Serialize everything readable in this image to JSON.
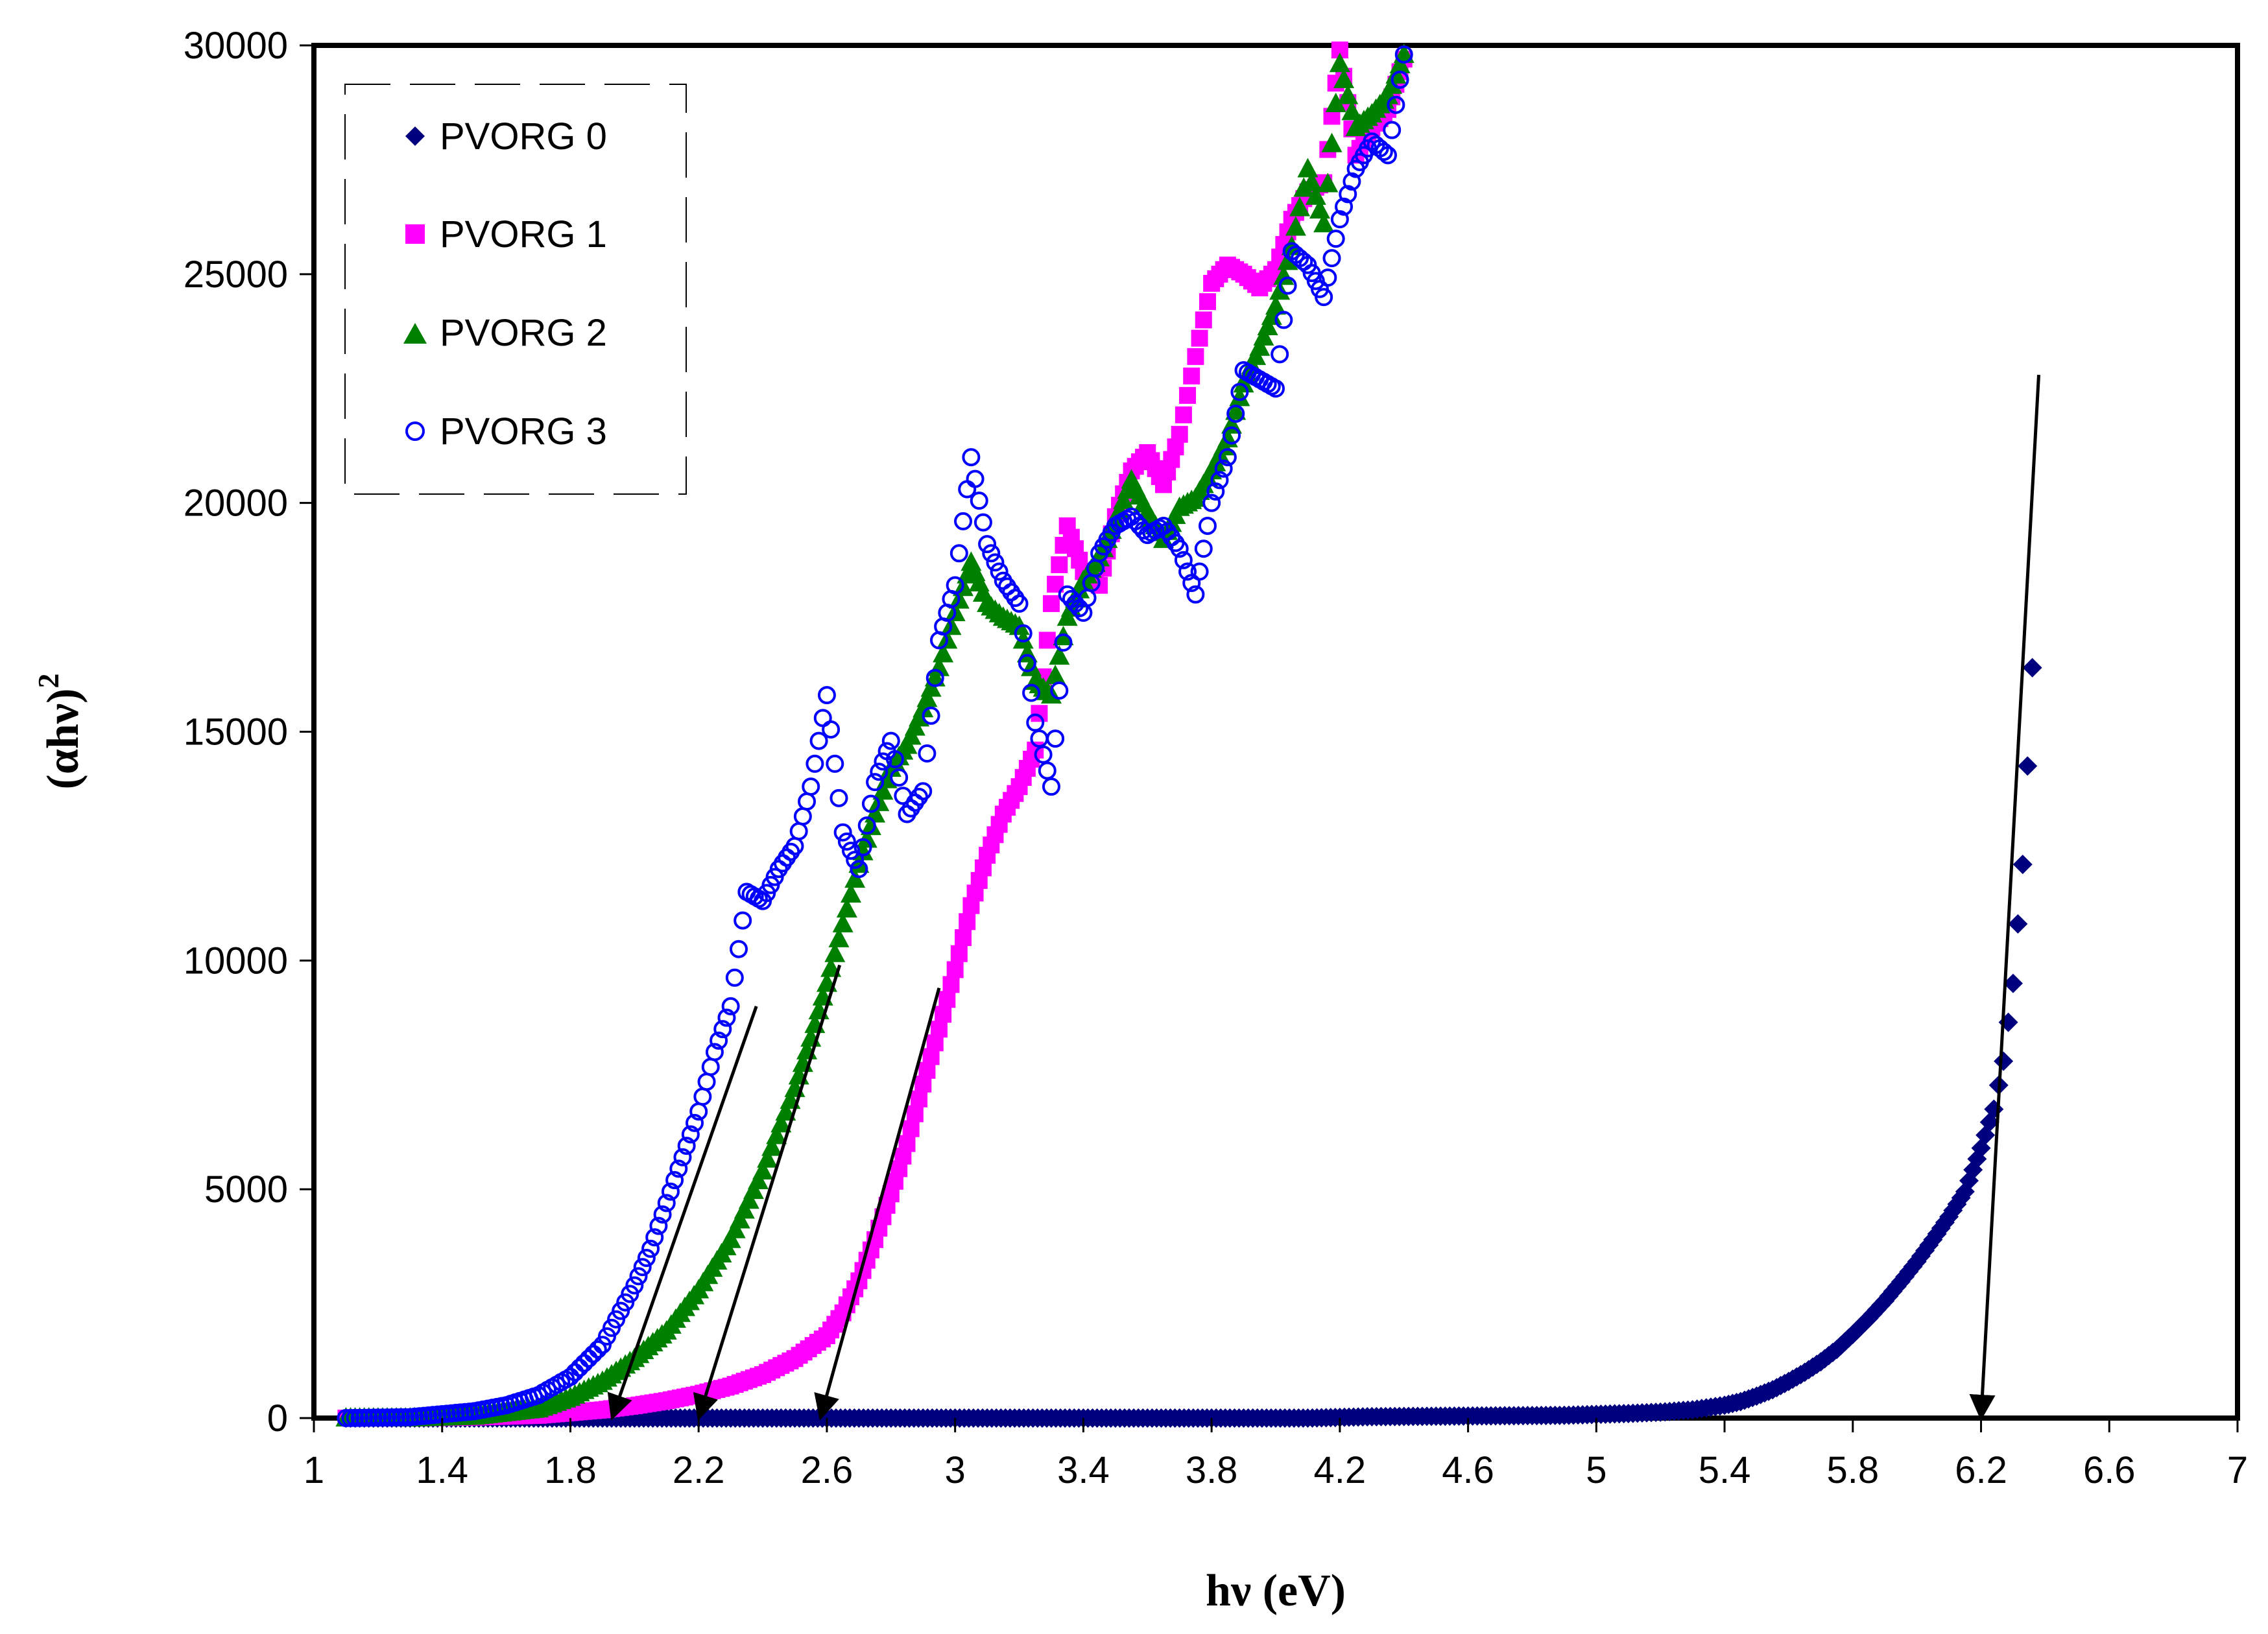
{
  "chart_data": {
    "type": "scatter",
    "title": "",
    "xlabel": "hν (eV)",
    "ylabel_base": "(αhν)",
    "ylabel_sup": "2",
    "xlim": [
      1,
      7
    ],
    "ylim": [
      0,
      30000
    ],
    "x_ticks": [
      1,
      1.4,
      1.8,
      2.2,
      2.6,
      3,
      3.4,
      3.8,
      4.2,
      4.6,
      5,
      5.4,
      5.8,
      6.2,
      6.6,
      7
    ],
    "x_tick_labels": [
      "1",
      "1.4",
      "1.8",
      "2.2",
      "2.6",
      "3",
      "3.4",
      "3.8",
      "4.2",
      "4.6",
      "5",
      "5.4",
      "5.8",
      "6.2",
      "6.6",
      "7"
    ],
    "y_ticks": [
      0,
      5000,
      10000,
      15000,
      20000,
      25000,
      30000
    ],
    "y_tick_labels": [
      "0",
      "5000",
      "10000",
      "15000",
      "20000",
      "25000",
      "30000"
    ],
    "grid": false,
    "legend_position": "top-left",
    "series": [
      {
        "name": "PVORG 0",
        "marker": "diamond",
        "color": "#00007f",
        "x": [
          1.1,
          1.3,
          1.5,
          1.7,
          1.9,
          2.1,
          2.3,
          2.5,
          2.7,
          2.9,
          3.1,
          3.3,
          3.5,
          3.7,
          3.9,
          4.1,
          4.3,
          4.5,
          4.7,
          4.9,
          5.1,
          5.2,
          5.3,
          5.4,
          5.45,
          5.5,
          5.55,
          5.6,
          5.65,
          5.7,
          5.75,
          5.8,
          5.85,
          5.9,
          5.95,
          6.0,
          6.05,
          6.1,
          6.15,
          6.2,
          6.24,
          6.27,
          6.3,
          6.33,
          6.36
        ],
        "y": [
          0,
          0,
          0,
          0,
          0,
          0,
          0,
          0,
          0,
          0,
          0,
          0,
          0,
          0,
          0,
          0,
          30,
          40,
          50,
          60,
          100,
          130,
          180,
          280,
          360,
          480,
          620,
          800,
          1000,
          1230,
          1500,
          1830,
          2180,
          2560,
          2980,
          3420,
          3900,
          4400,
          4950,
          5900,
          6750,
          7800,
          9500,
          12100,
          16400
        ]
      },
      {
        "name": "PVORG 1",
        "marker": "square",
        "color": "#ff00ff",
        "x": [
          1.1,
          1.3,
          1.5,
          1.7,
          1.9,
          2.0,
          2.1,
          2.2,
          2.3,
          2.4,
          2.5,
          2.6,
          2.65,
          2.7,
          2.75,
          2.8,
          2.85,
          2.9,
          2.95,
          3.0,
          3.05,
          3.1,
          3.15,
          3.2,
          3.25,
          3.3,
          3.35,
          3.4,
          3.45,
          3.5,
          3.55,
          3.6,
          3.65,
          3.7,
          3.75,
          3.8,
          3.85,
          3.9,
          3.95,
          4.0,
          4.05,
          4.1,
          4.15,
          4.2,
          4.25,
          4.3,
          4.35,
          4.4
        ],
        "y": [
          0,
          0,
          20,
          60,
          180,
          270,
          380,
          520,
          700,
          950,
          1300,
          1800,
          2300,
          3000,
          3900,
          4900,
          6000,
          7300,
          8500,
          9800,
          11200,
          12300,
          13200,
          13800,
          14600,
          17800,
          19500,
          18500,
          18200,
          19700,
          20700,
          21100,
          20400,
          21500,
          23200,
          24800,
          25200,
          25000,
          24700,
          25100,
          26200,
          26800,
          27000,
          29900,
          27600,
          28200,
          28600,
          29700
        ]
      },
      {
        "name": "PVORG 2",
        "marker": "triangle",
        "color": "#008000",
        "x": [
          1.1,
          1.3,
          1.5,
          1.7,
          1.8,
          1.9,
          2.0,
          2.1,
          2.2,
          2.3,
          2.4,
          2.5,
          2.55,
          2.6,
          2.65,
          2.7,
          2.75,
          2.8,
          2.85,
          2.9,
          2.95,
          3.0,
          3.05,
          3.1,
          3.15,
          3.2,
          3.25,
          3.3,
          3.35,
          3.4,
          3.45,
          3.5,
          3.55,
          3.6,
          3.65,
          3.7,
          3.75,
          3.8,
          3.85,
          3.9,
          3.95,
          4.0,
          4.05,
          4.1,
          4.15,
          4.2,
          4.25,
          4.3,
          4.35,
          4.4
        ],
        "y": [
          0,
          0,
          40,
          200,
          450,
          800,
          1300,
          1900,
          2800,
          3900,
          5400,
          7200,
          8300,
          9500,
          10800,
          12100,
          13200,
          14200,
          14700,
          15500,
          16400,
          17600,
          18700,
          17800,
          17500,
          17300,
          16100,
          15800,
          17500,
          18300,
          18800,
          19600,
          20500,
          19800,
          19200,
          19900,
          20100,
          20700,
          21400,
          22600,
          23400,
          24300,
          25600,
          27300,
          26100,
          29600,
          28200,
          28500,
          28900,
          29800
        ]
      },
      {
        "name": "PVORG 3",
        "marker": "circle-open",
        "color": "#0000ff",
        "x": [
          1.1,
          1.3,
          1.5,
          1.6,
          1.7,
          1.8,
          1.9,
          2.0,
          2.05,
          2.1,
          2.15,
          2.2,
          2.25,
          2.3,
          2.35,
          2.4,
          2.45,
          2.5,
          2.55,
          2.6,
          2.65,
          2.7,
          2.75,
          2.8,
          2.85,
          2.9,
          2.95,
          3.0,
          3.05,
          3.1,
          3.15,
          3.2,
          3.25,
          3.3,
          3.35,
          3.4,
          3.45,
          3.5,
          3.55,
          3.6,
          3.65,
          3.7,
          3.75,
          3.8,
          3.85,
          3.9,
          3.95,
          4.0,
          4.05,
          4.1,
          4.15,
          4.2,
          4.25,
          4.3,
          4.35,
          4.4
        ],
        "y": [
          0,
          20,
          150,
          280,
          500,
          900,
          1600,
          2900,
          3700,
          4700,
          5700,
          6700,
          8000,
          9000,
          11500,
          11300,
          12000,
          12500,
          13800,
          15800,
          12800,
          12000,
          13900,
          14800,
          13200,
          13700,
          17000,
          18200,
          21000,
          19100,
          18300,
          17800,
          15200,
          13800,
          18000,
          17600,
          18900,
          19500,
          19700,
          19300,
          19500,
          19000,
          18000,
          20000,
          21000,
          22900,
          22700,
          22500,
          25500,
          25200,
          24500,
          26200,
          27300,
          27900,
          27600,
          29800
        ]
      }
    ],
    "fit_lines": [
      {
        "x": [
          2.38,
          1.93
        ],
        "y": [
          9000,
          0
        ]
      },
      {
        "x": [
          2.64,
          2.2
        ],
        "y": [
          9900,
          0
        ]
      },
      {
        "x": [
          2.95,
          2.58
        ],
        "y": [
          9400,
          0
        ]
      },
      {
        "x": [
          6.38,
          6.2
        ],
        "y": [
          22800,
          0
        ]
      }
    ]
  },
  "legend": {
    "labels": [
      "PVORG 0",
      "PVORG 1",
      "PVORG 2",
      "PVORG 3"
    ]
  }
}
